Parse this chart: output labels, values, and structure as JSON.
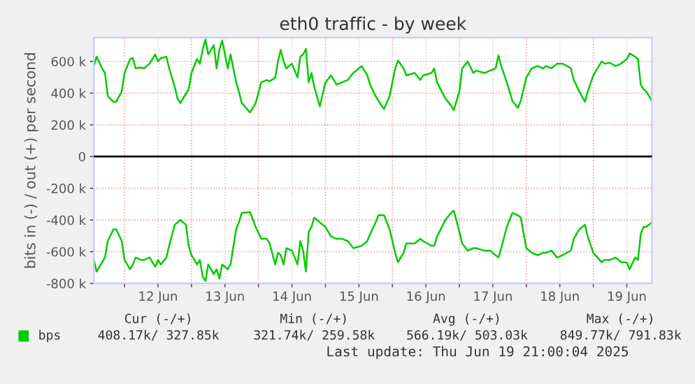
{
  "chart_data": {
    "type": "line",
    "title": "eth0 traffic - by week",
    "ylabel": "bits in (-) / out (+) per second",
    "x": [
      "2025-06-11T13:00",
      "2025-06-11T14:00",
      "2025-06-11T16:00",
      "2025-06-11T17:00",
      "2025-06-11T18:00",
      "2025-06-11T20:00",
      "2025-06-11T21:00",
      "2025-06-11T23:00",
      "2025-06-12T00:00",
      "2025-06-12T02:00",
      "2025-06-12T03:00",
      "2025-06-12T04:00",
      "2025-06-12T06:00",
      "2025-06-12T07:00",
      "2025-06-12T09:00",
      "2025-06-12T11:00",
      "2025-06-12T12:00",
      "2025-06-12T13:00",
      "2025-06-12T15:00",
      "2025-06-12T16:00",
      "2025-06-12T18:00",
      "2025-06-12T19:00",
      "2025-06-12T20:00",
      "2025-06-12T22:00",
      "2025-06-12T23:00",
      "2025-06-13T00:00",
      "2025-06-13T02:00",
      "2025-06-13T03:00",
      "2025-06-13T04:00",
      "2025-06-13T05:00",
      "2025-06-13T06:00",
      "2025-06-13T08:00",
      "2025-06-13T09:00",
      "2025-06-13T10:00",
      "2025-06-13T11:00",
      "2025-06-13T13:00",
      "2025-06-13T14:00",
      "2025-06-13T16:00",
      "2025-06-13T17:00",
      "2025-06-13T18:00",
      "2025-06-13T21:00",
      "2025-06-13T23:00",
      "2025-06-14T01:00",
      "2025-06-14T03:00",
      "2025-06-14T04:00",
      "2025-06-14T06:00",
      "2025-06-14T07:00",
      "2025-06-14T08:00",
      "2025-06-14T09:00",
      "2025-06-14T10:00",
      "2025-06-14T12:00",
      "2025-06-14T14:00",
      "2025-06-14T15:00",
      "2025-06-14T16:00",
      "2025-06-14T17:00",
      "2025-06-14T18:00",
      "2025-06-14T19:00",
      "2025-06-14T20:00",
      "2025-06-14T22:00",
      "2025-06-15T00:00",
      "2025-06-15T02:00",
      "2025-06-15T04:00",
      "2025-06-15T06:00",
      "2025-06-15T08:00",
      "2025-06-15T10:00",
      "2025-06-15T13:00",
      "2025-06-15T15:00",
      "2025-06-15T16:00",
      "2025-06-15T18:00",
      "2025-06-15T19:00",
      "2025-06-15T21:00",
      "2025-06-15T23:00",
      "2025-06-16T01:00",
      "2025-06-16T02:00",
      "2025-06-16T04:00",
      "2025-06-16T05:00",
      "2025-06-16T08:00",
      "2025-06-16T10:00",
      "2025-06-16T11:00",
      "2025-06-16T14:00",
      "2025-06-16T15:00",
      "2025-06-16T16:00",
      "2025-06-16T19:00",
      "2025-06-16T21:00",
      "2025-06-16T22:00",
      "2025-06-17T00:00",
      "2025-06-17T01:00",
      "2025-06-17T03:00",
      "2025-06-17T05:00",
      "2025-06-17T06:00",
      "2025-06-17T09:00",
      "2025-06-17T11:00",
      "2025-06-17T13:00",
      "2025-06-17T14:00",
      "2025-06-17T15:00",
      "2025-06-17T17:00",
      "2025-06-17T19:00",
      "2025-06-17T21:00",
      "2025-06-17T22:00",
      "2025-06-18T00:00",
      "2025-06-18T02:00",
      "2025-06-18T04:00",
      "2025-06-18T06:00",
      "2025-06-18T07:00",
      "2025-06-18T09:00",
      "2025-06-18T11:00",
      "2025-06-18T13:00",
      "2025-06-18T16:00",
      "2025-06-18T17:00",
      "2025-06-18T19:00",
      "2025-06-18T21:00",
      "2025-06-18T22:00",
      "2025-06-19T00:00",
      "2025-06-19T03:00",
      "2025-06-19T04:00",
      "2025-06-19T06:00",
      "2025-06-19T08:00",
      "2025-06-19T10:00",
      "2025-06-19T12:00",
      "2025-06-19T13:00",
      "2025-06-19T15:00",
      "2025-06-19T16:00",
      "2025-06-19T17:00",
      "2025-06-19T18:00",
      "2025-06-19T19:00",
      "2025-06-19T21:00"
    ],
    "series": [
      {
        "name": "bps",
        "color": "#00cc00",
        "values": [
          571000,
          630000,
          556000,
          527000,
          381000,
          345000,
          345000,
          410000,
          527000,
          615000,
          621000,
          556000,
          562000,
          556000,
          586000,
          644000,
          600000,
          621000,
          630000,
          556000,
          439000,
          366000,
          337000,
          395000,
          425000,
          527000,
          615000,
          586000,
          673000,
          738000,
          644000,
          703000,
          556000,
          673000,
          732000,
          556000,
          644000,
          468000,
          410000,
          337000,
          278000,
          337000,
          468000,
          483000,
          474000,
          498000,
          600000,
          673000,
          600000,
          556000,
          586000,
          498000,
          630000,
          644000,
          679000,
          468000,
          527000,
          439000,
          316000,
          468000,
          512000,
          454000,
          468000,
          483000,
          527000,
          571000,
          512000,
          454000,
          381000,
          351000,
          299000,
          381000,
          556000,
          606000,
          556000,
          512000,
          527000,
          483000,
          512000,
          527000,
          556000,
          468000,
          366000,
          322000,
          293000,
          410000,
          556000,
          600000,
          527000,
          542000,
          527000,
          542000,
          556000,
          638000,
          571000,
          468000,
          351000,
          307000,
          351000,
          498000,
          556000,
          571000,
          556000,
          571000,
          556000,
          586000,
          586000,
          556000,
          483000,
          410000,
          345000,
          410000,
          512000,
          600000,
          586000,
          591000,
          571000,
          586000,
          615000,
          650000,
          630000,
          615000,
          454000,
          425000,
          410000,
          351000
        ]
      },
      {
        "color": "#00cc00",
        "values": [
          -652000,
          -726000,
          -667000,
          -637000,
          -533000,
          -459000,
          -459000,
          -533000,
          -652000,
          -711000,
          -681000,
          -637000,
          -652000,
          -652000,
          -637000,
          -696000,
          -652000,
          -681000,
          -637000,
          -563000,
          -430000,
          -415000,
          -400000,
          -430000,
          -563000,
          -622000,
          -681000,
          -652000,
          -756000,
          -785000,
          -681000,
          -741000,
          -711000,
          -770000,
          -681000,
          -711000,
          -681000,
          -459000,
          -415000,
          -356000,
          -350000,
          -444000,
          -519000,
          -519000,
          -548000,
          -681000,
          -607000,
          -622000,
          -681000,
          -578000,
          -593000,
          -681000,
          -533000,
          -593000,
          -726000,
          -474000,
          -444000,
          -385000,
          -415000,
          -444000,
          -504000,
          -519000,
          -519000,
          -533000,
          -578000,
          -563000,
          -533000,
          -489000,
          -415000,
          -370000,
          -370000,
          -459000,
          -607000,
          -667000,
          -607000,
          -548000,
          -548000,
          -519000,
          -533000,
          -563000,
          -563000,
          -504000,
          -400000,
          -356000,
          -341000,
          -474000,
          -548000,
          -593000,
          -578000,
          -578000,
          -593000,
          -593000,
          -622000,
          -637000,
          -578000,
          -444000,
          -356000,
          -370000,
          -385000,
          -578000,
          -607000,
          -622000,
          -607000,
          -607000,
          -593000,
          -637000,
          -622000,
          -593000,
          -519000,
          -459000,
          -430000,
          -504000,
          -607000,
          -667000,
          -652000,
          -652000,
          -637000,
          -667000,
          -667000,
          -711000,
          -637000,
          -652000,
          -489000,
          -444000,
          -444000,
          -415000
        ]
      }
    ],
    "xlim": [
      "2025-06-11T13:00",
      "2025-06-19T21:00"
    ],
    "xticks": [
      {
        "value": "2025-06-12T00:00",
        "label": null
      },
      {
        "value": "2025-06-12T12:00",
        "label": "12 Jun"
      },
      {
        "value": "2025-06-13T00:00",
        "label": null
      },
      {
        "value": "2025-06-13T12:00",
        "label": "13 Jun"
      },
      {
        "value": "2025-06-14T00:00",
        "label": null
      },
      {
        "value": "2025-06-14T12:00",
        "label": "14 Jun"
      },
      {
        "value": "2025-06-15T00:00",
        "label": null
      },
      {
        "value": "2025-06-15T12:00",
        "label": "15 Jun"
      },
      {
        "value": "2025-06-16T00:00",
        "label": null
      },
      {
        "value": "2025-06-16T12:00",
        "label": "16 Jun"
      },
      {
        "value": "2025-06-17T00:00",
        "label": null
      },
      {
        "value": "2025-06-17T12:00",
        "label": "17 Jun"
      },
      {
        "value": "2025-06-18T00:00",
        "label": null
      },
      {
        "value": "2025-06-18T12:00",
        "label": "18 Jun"
      },
      {
        "value": "2025-06-19T00:00",
        "label": null
      },
      {
        "value": "2025-06-19T12:00",
        "label": "19 Jun"
      }
    ],
    "ylim": [
      -800000,
      750000
    ],
    "yticks": [
      {
        "value": -800000,
        "label": "-800 k"
      },
      {
        "value": -600000,
        "label": "-600 k"
      },
      {
        "value": -400000,
        "label": "-400 k"
      },
      {
        "value": -200000,
        "label": "-200 k"
      },
      0,
      {
        "value": 200000,
        "label": "200 k"
      },
      {
        "value": 400000,
        "label": "400 k"
      },
      {
        "value": 600000,
        "label": "600 k"
      }
    ],
    "ref_lines": [
      {
        "axis": "y",
        "value": 0,
        "color": "#000000"
      }
    ],
    "grid": true,
    "legend": "bottom",
    "line_style": "solid",
    "marker": "none",
    "annotations": [
      "Cur (-/+)",
      "Min (-/+)",
      "Avg (-/+)",
      "Max (-/+)",
      "408.17k/ 327.85k",
      "321.74k/ 259.58k",
      "566.19k/ 503.03k",
      "849.77k/ 791.83k",
      "Last update: Thu Jun 19 21:00:04 2025"
    ]
  }
}
